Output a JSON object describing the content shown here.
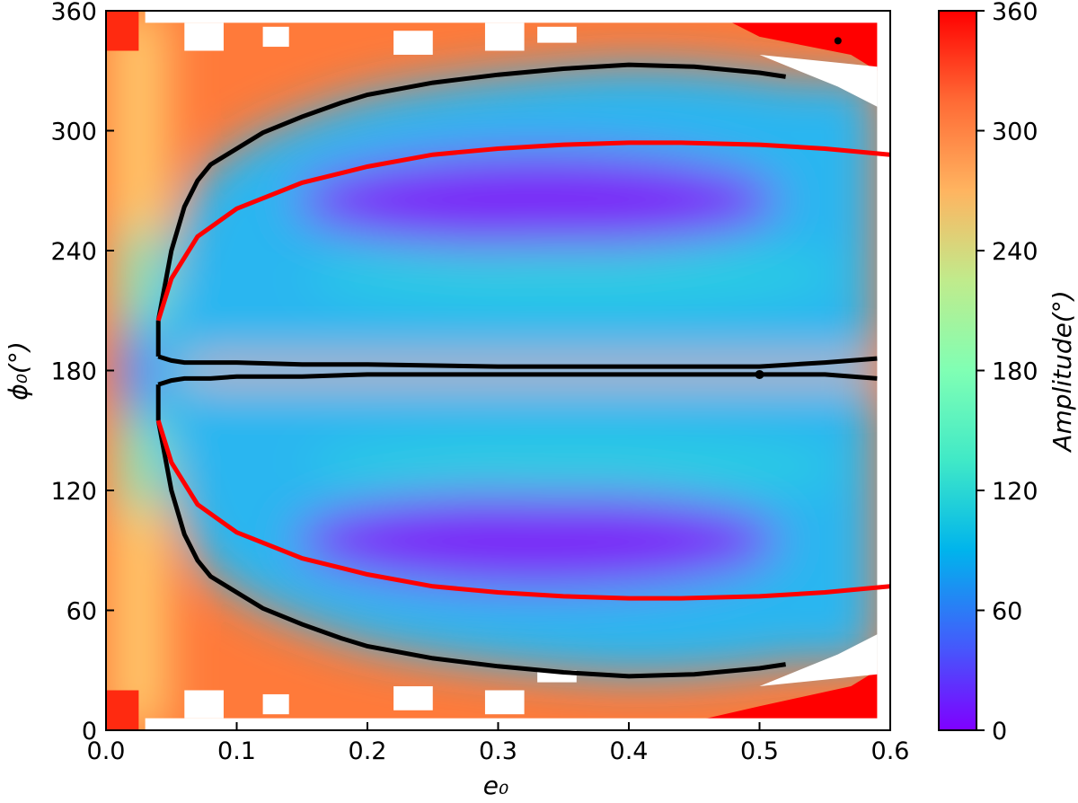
{
  "chart_data": {
    "type": "heatmap",
    "title": "",
    "xlabel": "e₀",
    "ylabel": "ϕ₀(°)",
    "xlim": [
      0.0,
      0.6
    ],
    "ylim": [
      0,
      360
    ],
    "x_ticks": [
      "0.0",
      "0.1",
      "0.2",
      "0.3",
      "0.4",
      "0.5",
      "0.6"
    ],
    "y_ticks": [
      "0",
      "60",
      "120",
      "180",
      "240",
      "300",
      "360"
    ],
    "colorbar": {
      "label": "Amplitude(°)",
      "range": [
        0,
        360
      ],
      "ticks": [
        "0",
        "60",
        "120",
        "180",
        "240",
        "300",
        "360"
      ],
      "colormap": "rainbow",
      "colors": [
        "#7f00ff",
        "#4060fb",
        "#00b4ec",
        "#40e9c7",
        "#80ffb4",
        "#c0eb8c",
        "#ffb460",
        "#ff6a35",
        "#ff0000"
      ]
    },
    "data_extent_x": [
      0.0,
      0.59
    ],
    "grid": false,
    "series": [
      {
        "type": "contour",
        "color": "#000000",
        "x": [
          0.04,
          0.05,
          0.06,
          0.07,
          0.08,
          0.1,
          0.12,
          0.15,
          0.18,
          0.2,
          0.25,
          0.3,
          0.35,
          0.4,
          0.45,
          0.5,
          0.52
        ],
        "y_upper": [
          205,
          240,
          262,
          275,
          283,
          291,
          299,
          307,
          314,
          318,
          324,
          328,
          331,
          333,
          332,
          329,
          327
        ],
        "y_lower": [
          155,
          120,
          98,
          85,
          77,
          69,
          61,
          53,
          46,
          42,
          36,
          32,
          29,
          27,
          28,
          31,
          33
        ]
      },
      {
        "type": "contour",
        "color": "#000000",
        "x": [
          0.04,
          0.05,
          0.06,
          0.08,
          0.1,
          0.15,
          0.2,
          0.3,
          0.4,
          0.5,
          0.55,
          0.59
        ],
        "y_upper": [
          187,
          185,
          184,
          184,
          184,
          183,
          183,
          182,
          182,
          182,
          184,
          186
        ],
        "y_lower": [
          173,
          175,
          176,
          176,
          177,
          177,
          178,
          178,
          178,
          178,
          178,
          176
        ]
      },
      {
        "type": "line",
        "color": "#ff0000",
        "x": [
          0.04,
          0.05,
          0.07,
          0.1,
          0.15,
          0.2,
          0.25,
          0.3,
          0.35,
          0.4,
          0.44,
          0.5,
          0.55,
          0.6
        ],
        "y_upper": [
          205,
          226,
          247,
          261,
          274,
          282,
          288,
          291,
          293,
          294,
          294,
          293,
          291,
          288
        ],
        "y_lower": [
          155,
          134,
          113,
          99,
          86,
          78,
          72,
          69,
          67,
          66,
          66,
          67,
          69,
          72
        ]
      }
    ]
  }
}
